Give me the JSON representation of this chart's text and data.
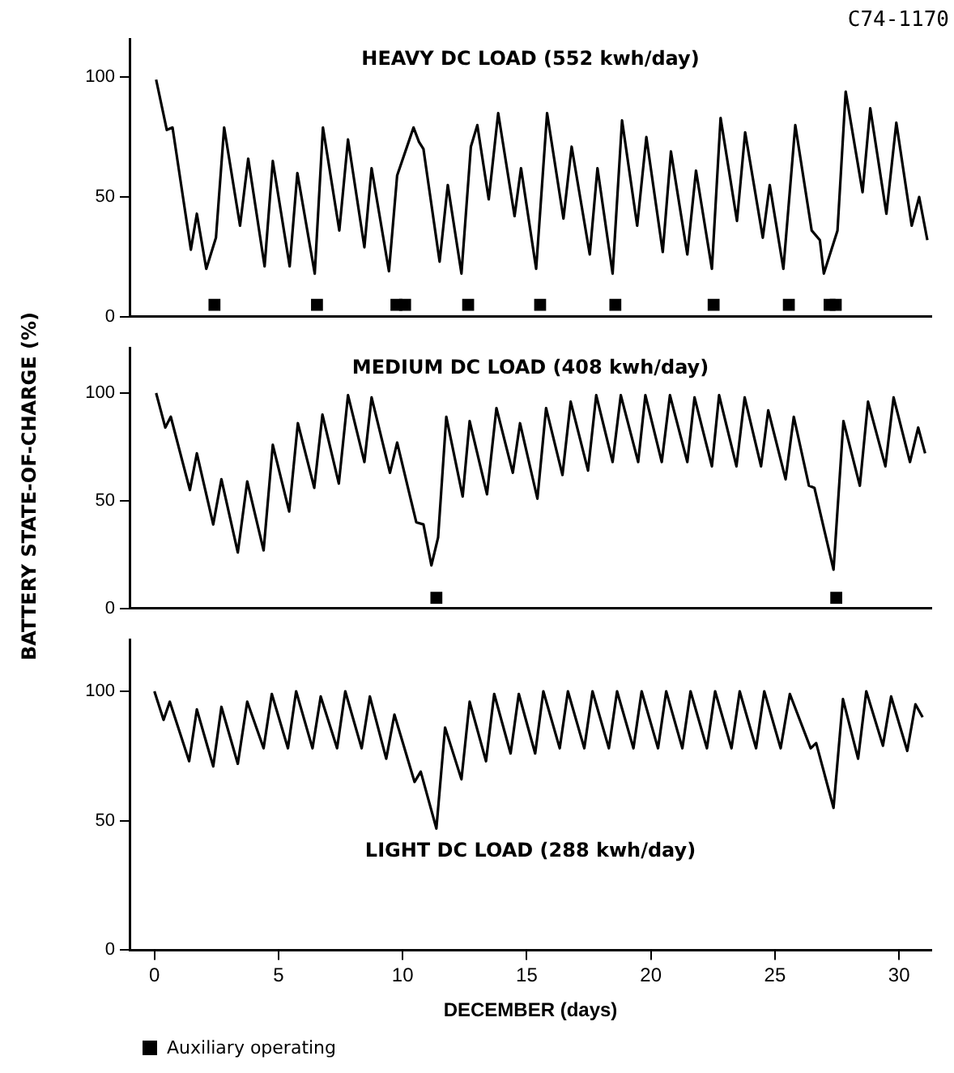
{
  "chart_data": [
    {
      "type": "line",
      "title": "HEAVY DC LOAD (552 kwh/day)",
      "annotations": [
        "C74-1170"
      ],
      "xlim": [
        -1,
        31.3
      ],
      "ylim": [
        0,
        116
      ],
      "yticks": [
        0,
        50,
        100
      ],
      "tick_labels": "y",
      "grid": false,
      "legend": "bottom left",
      "series": [
        {
          "type": "line",
          "color": "#000000",
          "marker": "none",
          "line_style": "solid",
          "x": [
            0.07,
            0.5,
            0.73,
            1.47,
            1.71,
            2.09,
            2.48,
            2.81,
            3.45,
            3.78,
            4.44,
            4.77,
            5.45,
            5.76,
            6.46,
            6.79,
            7.45,
            7.8,
            8.46,
            8.75,
            9.45,
            9.78,
            10.44,
            10.66,
            10.84,
            11.49,
            11.82,
            12.37,
            12.75,
            13.01,
            13.47,
            13.85,
            14.51,
            14.77,
            15.38,
            15.82,
            16.48,
            16.81,
            17.54,
            17.85,
            18.46,
            18.84,
            19.45,
            19.82,
            20.48,
            20.81,
            21.47,
            21.82,
            22.46,
            22.81,
            23.47,
            23.8,
            24.51,
            24.79,
            25.34,
            25.82,
            26.48,
            26.81,
            26.97,
            27.52,
            27.85,
            28.53,
            28.84,
            29.49,
            29.89,
            30.51,
            30.81,
            31.14
          ],
          "values": [
            99,
            78,
            79,
            28,
            43,
            20,
            33,
            79,
            38,
            66,
            21,
            65,
            21,
            60,
            18,
            79,
            36,
            74,
            29,
            62,
            19,
            59,
            79,
            73,
            70,
            23,
            55,
            18,
            71,
            80,
            49,
            85,
            42,
            62,
            20,
            85,
            41,
            71,
            26,
            62,
            18,
            82,
            38,
            75,
            27,
            69,
            26,
            61,
            20,
            83,
            40,
            77,
            33,
            55,
            20,
            80,
            36,
            32,
            18,
            36,
            94,
            52,
            87,
            43,
            81,
            38,
            50,
            32
          ]
        },
        {
          "type": "scatter",
          "name": "Auxiliary operating",
          "color": "#000000",
          "marker": "square",
          "x": [
            2.42,
            6.55,
            9.75,
            10.1,
            12.64,
            15.54,
            18.57,
            22.53,
            25.56,
            27.2,
            27.45
          ],
          "values": [
            5,
            5,
            5,
            5,
            5,
            5,
            5,
            5,
            5,
            5,
            5
          ]
        }
      ]
    },
    {
      "type": "line",
      "title": "MEDIUM DC LOAD (408 kwh/day)",
      "ylabel": "BATTERY STATE-OF-CHARGE (%)",
      "xlim": [
        -1,
        31.3
      ],
      "ylim": [
        0,
        121
      ],
      "yticks": [
        0,
        50,
        100
      ],
      "tick_labels": "y",
      "grid": false,
      "series": [
        {
          "type": "line",
          "color": "#000000",
          "marker": "none",
          "line_style": "solid",
          "x": [
            0.07,
            0.44,
            0.66,
            1.43,
            1.71,
            2.37,
            2.7,
            3.36,
            3.74,
            4.4,
            4.77,
            5.43,
            5.78,
            6.44,
            6.77,
            7.43,
            7.8,
            8.46,
            8.75,
            9.49,
            9.78,
            10.55,
            10.84,
            11.16,
            11.43,
            11.76,
            12.42,
            12.7,
            13.4,
            13.78,
            14.44,
            14.73,
            15.43,
            15.78,
            16.44,
            16.77,
            17.47,
            17.8,
            18.46,
            18.79,
            19.49,
            19.78,
            20.44,
            20.77,
            21.47,
            21.76,
            22.46,
            22.75,
            23.45,
            23.78,
            24.44,
            24.73,
            25.43,
            25.76,
            26.37,
            26.59,
            27.36,
            27.76,
            28.42,
            28.75,
            29.45,
            29.78,
            30.44,
            30.77,
            31.05
          ],
          "values": [
            100,
            84,
            89,
            55,
            72,
            39,
            60,
            26,
            59,
            27,
            76,
            45,
            86,
            56,
            90,
            58,
            99,
            68,
            98,
            63,
            77,
            40,
            39,
            20,
            33,
            89,
            52,
            87,
            53,
            93,
            63,
            86,
            51,
            93,
            62,
            96,
            64,
            99,
            68,
            99,
            68,
            99,
            68,
            99,
            68,
            98,
            66,
            99,
            66,
            98,
            66,
            92,
            60,
            89,
            57,
            56,
            18,
            87,
            57,
            96,
            66,
            98,
            68,
            84,
            72
          ]
        },
        {
          "type": "scatter",
          "name": "Auxiliary operating",
          "color": "#000000",
          "marker": "square",
          "x": [
            11.36,
            27.47
          ],
          "values": [
            5,
            5
          ]
        }
      ]
    },
    {
      "type": "line",
      "title": "LIGHT DC LOAD (288 kwh/day)",
      "xlabel": "DECEMBER (days)",
      "xlim": [
        -1,
        31.3
      ],
      "xticks": [
        0,
        5,
        10,
        15,
        20,
        25,
        30
      ],
      "ylim": [
        0,
        120
      ],
      "yticks": [
        0,
        50,
        100
      ],
      "grid": false,
      "series": [
        {
          "type": "line",
          "color": "#000000",
          "marker": "none",
          "line_style": "solid",
          "x": [
            0,
            0.37,
            0.62,
            1.4,
            1.71,
            2.37,
            2.7,
            3.36,
            3.74,
            4.4,
            4.73,
            5.38,
            5.71,
            6.37,
            6.7,
            7.36,
            7.69,
            8.35,
            8.68,
            9.34,
            9.67,
            10.48,
            10.73,
            11.36,
            11.71,
            12.37,
            12.7,
            13.36,
            13.69,
            14.35,
            14.68,
            15.34,
            15.67,
            16.33,
            16.66,
            17.32,
            17.65,
            18.31,
            18.64,
            19.3,
            19.63,
            20.29,
            20.62,
            21.27,
            21.6,
            22.26,
            22.59,
            23.25,
            23.58,
            24.24,
            24.57,
            25.23,
            25.6,
            26.44,
            26.66,
            27.36,
            27.74,
            28.35,
            28.68,
            29.35,
            29.68,
            30.33,
            30.66,
            30.95
          ],
          "values": [
            100,
            89,
            96,
            73,
            93,
            71,
            94,
            72,
            96,
            78,
            99,
            78,
            100,
            78,
            98,
            78,
            100,
            78,
            98,
            74,
            91,
            65,
            69,
            47,
            86,
            66,
            96,
            73,
            99,
            76,
            99,
            76,
            100,
            78,
            100,
            78,
            100,
            78,
            100,
            78,
            100,
            78,
            100,
            78,
            100,
            78,
            100,
            78,
            100,
            78,
            100,
            78,
            99,
            78,
            80,
            55,
            97,
            74,
            100,
            79,
            98,
            77,
            95,
            90
          ]
        }
      ]
    }
  ]
}
